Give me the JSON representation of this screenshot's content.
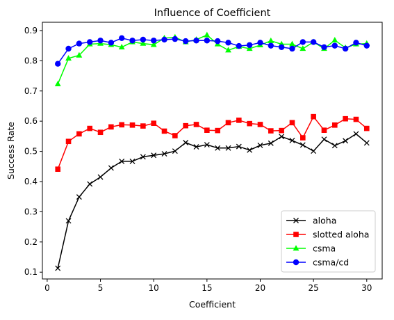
{
  "chart_data": {
    "type": "line",
    "title": "Influence of Coefficient",
    "xlabel": "Coefficient",
    "ylabel": "Success Rate",
    "xlim": [
      -0.45,
      31.45
    ],
    "ylim": [
      0.0775,
      0.9275
    ],
    "xticks": [
      0,
      5,
      10,
      15,
      20,
      25,
      30
    ],
    "yticks": [
      0.1,
      0.2,
      0.3,
      0.4,
      0.5,
      0.6,
      0.7,
      0.8,
      0.9
    ],
    "grid": false,
    "legend_position": "lower-right",
    "x": [
      1,
      2,
      3,
      4,
      5,
      6,
      7,
      8,
      9,
      10,
      11,
      12,
      13,
      14,
      15,
      16,
      17,
      18,
      19,
      20,
      21,
      22,
      23,
      24,
      25,
      26,
      27,
      28,
      29,
      30
    ],
    "series": [
      {
        "name": "aloha",
        "color": "#000000",
        "marker": "x",
        "values": [
          0.113,
          0.27,
          0.349,
          0.392,
          0.415,
          0.445,
          0.467,
          0.467,
          0.482,
          0.487,
          0.492,
          0.501,
          0.529,
          0.515,
          0.522,
          0.511,
          0.511,
          0.516,
          0.504,
          0.52,
          0.527,
          0.549,
          0.536,
          0.521,
          0.501,
          0.54,
          0.519,
          0.535,
          0.558,
          0.528
        ]
      },
      {
        "name": "slotted aloha",
        "color": "#ff0000",
        "marker": "square",
        "values": [
          0.441,
          0.533,
          0.558,
          0.576,
          0.563,
          0.581,
          0.588,
          0.587,
          0.584,
          0.593,
          0.567,
          0.552,
          0.585,
          0.589,
          0.57,
          0.569,
          0.595,
          0.603,
          0.592,
          0.589,
          0.568,
          0.569,
          0.595,
          0.545,
          0.615,
          0.57,
          0.587,
          0.608,
          0.606,
          0.576
        ]
      },
      {
        "name": "csma",
        "color": "#00ff00",
        "marker": "triangle",
        "values": [
          0.723,
          0.808,
          0.818,
          0.855,
          0.857,
          0.853,
          0.845,
          0.862,
          0.857,
          0.853,
          0.875,
          0.878,
          0.862,
          0.87,
          0.885,
          0.855,
          0.835,
          0.847,
          0.84,
          0.852,
          0.866,
          0.855,
          0.855,
          0.84,
          0.862,
          0.84,
          0.868,
          0.843,
          0.855,
          0.857
        ]
      },
      {
        "name": "csma/cd",
        "color": "#0000ff",
        "marker": "circle",
        "values": [
          0.79,
          0.84,
          0.857,
          0.862,
          0.867,
          0.86,
          0.875,
          0.867,
          0.87,
          0.867,
          0.87,
          0.872,
          0.865,
          0.867,
          0.867,
          0.865,
          0.86,
          0.849,
          0.852,
          0.86,
          0.85,
          0.845,
          0.84,
          0.862,
          0.862,
          0.845,
          0.85,
          0.84,
          0.86,
          0.85
        ]
      }
    ]
  }
}
